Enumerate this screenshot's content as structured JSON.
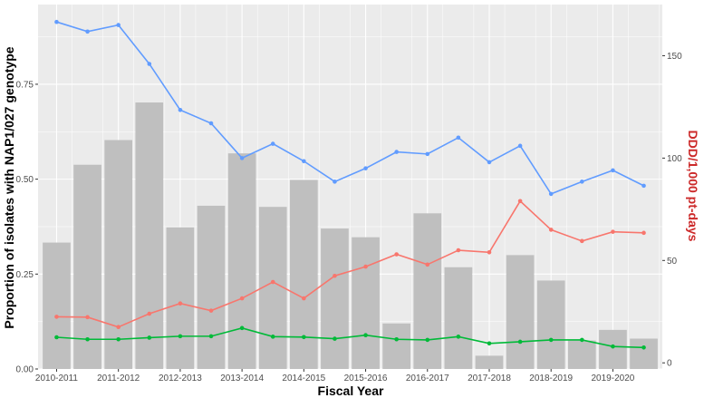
{
  "chart_data": {
    "type": "bar",
    "title": "",
    "xlabel": "Fiscal Year",
    "ylabel": "Proportion of isolates with NAP1/027 genotype",
    "ylabel_right": "DDD/1,000 pt-days",
    "ylim": [
      0,
      0.96
    ],
    "ylim_right": [
      -3,
      175
    ],
    "yticks": [
      "0.00",
      "0.25",
      "0.50",
      "0.75"
    ],
    "yticks_right": [
      "0",
      "50",
      "100",
      "150"
    ],
    "xtick_labels": [
      "2010-2011",
      "2011-2012",
      "2012-2013",
      "2013-2014",
      "2014-2015",
      "2015-2016",
      "2016-2017",
      "2017-2018",
      "2018-2019",
      "2019-2020"
    ],
    "grid": true,
    "x": [
      1,
      2,
      3,
      4,
      5,
      6,
      7,
      8,
      9,
      10,
      11,
      12,
      13,
      14,
      15,
      16,
      17,
      18,
      19,
      20
    ],
    "bars": {
      "axis": "left",
      "values": [
        0.333,
        0.538,
        0.603,
        0.702,
        0.373,
        0.43,
        0.568,
        0.427,
        0.498,
        0.37,
        0.347,
        0.12,
        0.41,
        0.268,
        0.035,
        0.3,
        0.233,
        0.075,
        0.103,
        0.08
      ]
    },
    "lines": [
      {
        "axis": "right",
        "values": [
          166.5,
          161.8,
          165.0,
          146.0,
          123.5,
          117.0,
          100.0,
          107.0,
          98.5,
          88.5,
          95.0,
          103.0,
          102.0,
          110.0,
          98.0,
          106.0,
          82.5,
          88.5,
          94.0,
          86.5
        ]
      },
      {
        "axis": "right",
        "values": [
          22.5,
          22.3,
          17.5,
          24.0,
          29.0,
          25.5,
          31.5,
          39.5,
          31.5,
          42.5,
          47.0,
          53.0,
          48.0,
          55.0,
          54.0,
          79.0,
          65.0,
          59.5,
          64.0,
          63.5
        ]
      },
      {
        "axis": "right",
        "values": [
          12.5,
          11.5,
          11.5,
          12.3,
          13.0,
          13.0,
          17.0,
          12.8,
          12.6,
          11.8,
          13.5,
          11.5,
          11.2,
          12.8,
          9.5,
          10.3,
          11.2,
          11.2,
          8.0,
          7.5
        ]
      }
    ],
    "colors": {
      "bars": "#bfbfbf",
      "line1": "#619cff",
      "line2": "#f8766d",
      "line3": "#00ba38",
      "panel": "#ebebeb",
      "grid": "#ffffff",
      "right_axis_title": "#cc2a2a"
    }
  }
}
